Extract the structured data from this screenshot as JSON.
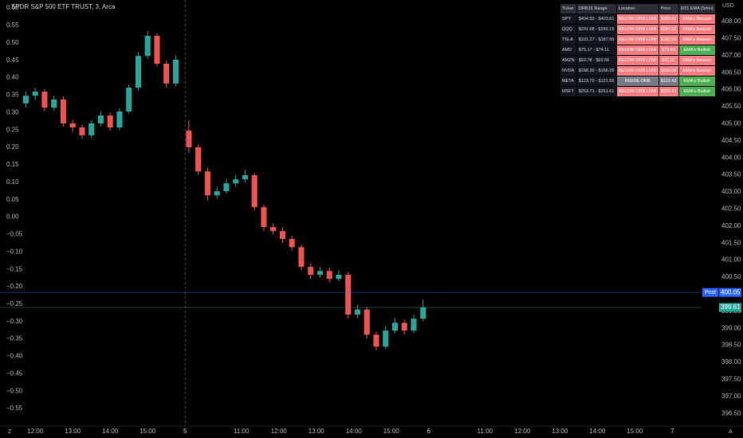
{
  "chart_data": {
    "type": "candlestick",
    "title": "SPDR S&P 500 ETF TRUST, 3, Arca",
    "y2_unit": "USD",
    "up_color": "#26a69a",
    "down_color": "#ef5350",
    "x": [
      2.25,
      2.5,
      2.75,
      3,
      3.25,
      3.5,
      3.75,
      4,
      4.25,
      4.5,
      4.75,
      5,
      5.25,
      5.5,
      5.75,
      6,
      6.25,
      6.6,
      6.85,
      7.1,
      7.35,
      7.6,
      7.85,
      8.1,
      8.35,
      8.6,
      8.85,
      9.1,
      9.35,
      9.6,
      9.85,
      10.1,
      10.35,
      10.6,
      10.85,
      11.1,
      11.35,
      11.6,
      11.85,
      12.1,
      12.35,
      12.6,
      12.85
    ],
    "series": [
      {
        "axis": "y2",
        "open": [
          405.6,
          405.82,
          405.94,
          405.47,
          405.71,
          405.01,
          404.89,
          404.66,
          405.01,
          405.24,
          404.89,
          405.36,
          406.06,
          406.99,
          407.58,
          406.76,
          406.18,
          404.8,
          404.31,
          403.6,
          402.9,
          403.02,
          403.25,
          403.37,
          403.49,
          402.55,
          401.97,
          401.85,
          401.62,
          401.38,
          400.8,
          400.57,
          400.68,
          400.45,
          400.57,
          399.4,
          399.55,
          398.81,
          398.46,
          398.93,
          399.16,
          398.93,
          399.28
        ],
        "high": [
          405.95,
          406.05,
          406.02,
          405.83,
          405.8,
          405.12,
          404.98,
          405.1,
          405.36,
          405.33,
          405.45,
          406.15,
          407.1,
          407.72,
          407.65,
          406.85,
          407.0,
          405.1,
          404.4,
          403.7,
          403.15,
          403.38,
          403.5,
          403.65,
          403.55,
          402.62,
          402.08,
          401.95,
          401.72,
          401.45,
          400.9,
          400.8,
          400.78,
          400.7,
          400.65,
          399.68,
          399.62,
          398.9,
          399.05,
          399.3,
          399.25,
          399.4,
          399.85
        ],
        "low": [
          405.48,
          405.7,
          405.36,
          405.38,
          404.92,
          404.76,
          404.55,
          404.58,
          404.93,
          404.8,
          404.81,
          405.3,
          405.98,
          406.9,
          406.68,
          406.05,
          406.1,
          404.15,
          403.5,
          402.75,
          402.8,
          402.95,
          403.15,
          403.28,
          402.45,
          401.85,
          401.75,
          401.5,
          401.28,
          400.7,
          400.45,
          400.48,
          400.35,
          400.38,
          399.28,
          399.3,
          398.7,
          398.35,
          398.4,
          398.85,
          398.82,
          398.85,
          399.2
        ],
        "close": [
          405.82,
          405.94,
          405.47,
          405.71,
          405.01,
          404.89,
          404.66,
          405.01,
          405.24,
          404.89,
          405.36,
          406.06,
          406.99,
          407.58,
          406.76,
          406.18,
          406.88,
          404.31,
          403.6,
          402.9,
          403.02,
          403.25,
          403.37,
          403.49,
          402.55,
          401.97,
          401.85,
          401.62,
          401.38,
          400.8,
          400.57,
          400.68,
          400.45,
          400.57,
          399.4,
          399.55,
          398.81,
          398.46,
          398.93,
          399.16,
          398.93,
          399.28,
          399.61
        ]
      }
    ],
    "price_lines": [
      {
        "label": "Post",
        "value": 400.05,
        "color": "#2962ff"
      },
      {
        "value": 399.61,
        "color": "#26a69a"
      }
    ],
    "xlim": [
      1.56,
      20.28
    ],
    "xticks": [
      {
        "value": 2.5,
        "label": "12:00"
      },
      {
        "value": 3.5,
        "label": "13:00"
      },
      {
        "value": 4.5,
        "label": "14:00"
      },
      {
        "value": 5.5,
        "label": "15:00"
      },
      {
        "value": 6.5,
        "label": "5"
      },
      {
        "value": 8,
        "label": "11:00"
      },
      {
        "value": 9,
        "label": "12:00"
      },
      {
        "value": 10,
        "label": "13:00"
      },
      {
        "value": 11,
        "label": "14:00"
      },
      {
        "value": 12,
        "label": "15:00"
      },
      {
        "value": 13,
        "label": "6"
      },
      {
        "value": 14.5,
        "label": "11:00"
      },
      {
        "value": 15.5,
        "label": "12:00"
      },
      {
        "value": 16.5,
        "label": "13:00"
      },
      {
        "value": 17.5,
        "label": "14:00"
      },
      {
        "value": 18.5,
        "label": "15:00"
      },
      {
        "value": 19.5,
        "label": "7"
      }
    ],
    "ylim": [
      -0.6,
      0.623
    ],
    "yticks": [
      {
        "value": 0.6,
        "label": "0.60"
      },
      {
        "value": 0.55,
        "label": "0.55"
      },
      {
        "value": 0.5,
        "label": "0.50"
      },
      {
        "value": 0.45,
        "label": "0.45"
      },
      {
        "value": 0.4,
        "label": "0.40"
      },
      {
        "value": 0.35,
        "label": "0.35"
      },
      {
        "value": 0.3,
        "label": "0.30"
      },
      {
        "value": 0.25,
        "label": "0.25"
      },
      {
        "value": 0.2,
        "label": "0.20"
      },
      {
        "value": 0.15,
        "label": "0.15"
      },
      {
        "value": 0.1,
        "label": "0.10"
      },
      {
        "value": 0.05,
        "label": "0.05"
      },
      {
        "value": 0,
        "label": "0.00"
      },
      {
        "value": -0.05,
        "label": "−0.05"
      },
      {
        "value": -0.1,
        "label": "−0.10"
      },
      {
        "value": -0.15,
        "label": "−0.15"
      },
      {
        "value": -0.2,
        "label": "−0.20"
      },
      {
        "value": -0.25,
        "label": "−0.25"
      },
      {
        "value": -0.3,
        "label": "−0.30"
      },
      {
        "value": -0.35,
        "label": "−0.35"
      },
      {
        "value": -0.4,
        "label": "−0.40"
      },
      {
        "value": -0.45,
        "label": "−0.45"
      },
      {
        "value": -0.5,
        "label": "−0.50"
      },
      {
        "value": -0.55,
        "label": "−0.55"
      }
    ],
    "y2lim": [
      396.13,
      408.63
    ],
    "y2ticks": [
      {
        "value": 408,
        "label": "408.00"
      },
      {
        "value": 407.5,
        "label": "407.50"
      },
      {
        "value": 407,
        "label": "407.00"
      },
      {
        "value": 406.5,
        "label": "406.50"
      },
      {
        "value": 406,
        "label": "406.00"
      },
      {
        "value": 405.5,
        "label": "405.50"
      },
      {
        "value": 405,
        "label": "405.00"
      },
      {
        "value": 404.5,
        "label": "404.50"
      },
      {
        "value": 404,
        "label": "404.00"
      },
      {
        "value": 403.5,
        "label": "403.50"
      },
      {
        "value": 403,
        "label": "403.00"
      },
      {
        "value": 402.5,
        "label": "402.50"
      },
      {
        "value": 402,
        "label": "402.00"
      },
      {
        "value": 401.5,
        "label": "401.50"
      },
      {
        "value": 401,
        "label": "401.00"
      },
      {
        "value": 400.5,
        "label": "400.50"
      },
      {
        "value": 400,
        "label": "400.00"
      },
      {
        "value": 399.5,
        "label": "399.50"
      },
      {
        "value": 399,
        "label": "399.00"
      },
      {
        "value": 398.5,
        "label": "398.50"
      },
      {
        "value": 398,
        "label": "398.00"
      },
      {
        "value": 397.5,
        "label": "397.50"
      },
      {
        "value": 397,
        "label": "397.00"
      },
      {
        "value": 396.5,
        "label": "396.50"
      }
    ]
  },
  "table": {
    "columns": [
      "Ticker",
      "ORB15 Range",
      "Location",
      "Price",
      "9/21 EMA (5min)"
    ],
    "rows": [
      [
        "SPY",
        "$404.93 - $403.81",
        "BELOW ORB LOW",
        "$399.61",
        "EMA's Bearish"
      ],
      [
        "QQQ",
        "$291.68 - $290.19",
        "BELOW ORB LOW",
        "$287.52",
        "EMA's Bearish"
      ],
      [
        "TSLA",
        "$191.27 - $187.50",
        "BELOW ORB LOW",
        "$182.50",
        "EMA's Bearish"
      ],
      [
        "AMD",
        "$75.17 - $74.11",
        "BELOW ORB LOW",
        "$73.64",
        "EMA's Bullish"
      ],
      [
        "AMZN",
        "$93.78 - $92.66",
        "BELOW ORB LOW",
        "$91.01",
        "EMA's Bearish"
      ],
      [
        "NVDA",
        "$168.30 - $166.39",
        "BELOW ORB LOW",
        "$166.08",
        "EMA's Bearish"
      ],
      [
        "META",
        "$123.70 - $121.65",
        "INSIDE ORB",
        "$122.43",
        "EMA's Bullish"
      ],
      [
        "MSFT",
        "$253.71 - $251.61",
        "BELOW ORB LOW",
        "$250.21",
        "EMA's Bullish"
      ]
    ],
    "cell_colors": [
      [
        "#f77c80",
        "#f77c80",
        "#f77c80"
      ],
      [
        "#f77c80",
        "#f77c80",
        "#f77c80"
      ],
      [
        "#f77c80",
        "#f77c80",
        "#f77c80"
      ],
      [
        "#f77c80",
        "#f77c80",
        "#4caf50"
      ],
      [
        "#f77c80",
        "#f77c80",
        "#f77c80"
      ],
      [
        "#f77c80",
        "#f77c80",
        "#f77c80"
      ],
      [
        "#787b86",
        "#787b86",
        "#4caf50"
      ],
      [
        "#f77c80",
        "#f77c80",
        "#4caf50"
      ]
    ]
  }
}
